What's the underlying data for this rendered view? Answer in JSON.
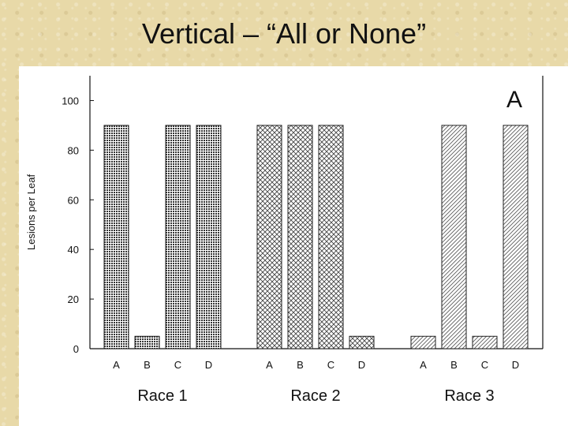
{
  "slide": {
    "title": "Vertical – “All or None”"
  },
  "chart_data": {
    "type": "bar",
    "panel_label": "A",
    "ylabel": "Lesions per Leaf",
    "xlabel": "",
    "ylim": [
      0,
      110
    ],
    "yticks": [
      0,
      20,
      40,
      60,
      80,
      100
    ],
    "groups": [
      {
        "name": "Race 1",
        "pattern": "dense",
        "categories": [
          "A",
          "B",
          "C",
          "D"
        ],
        "values": [
          90,
          5,
          90,
          90
        ]
      },
      {
        "name": "Race 2",
        "pattern": "crosshatch",
        "categories": [
          "A",
          "B",
          "C",
          "D"
        ],
        "values": [
          90,
          90,
          90,
          5
        ]
      },
      {
        "name": "Race 3",
        "pattern": "diagonal",
        "categories": [
          "A",
          "B",
          "C",
          "D"
        ],
        "values": [
          5,
          90,
          5,
          90
        ]
      }
    ],
    "grid": false
  }
}
